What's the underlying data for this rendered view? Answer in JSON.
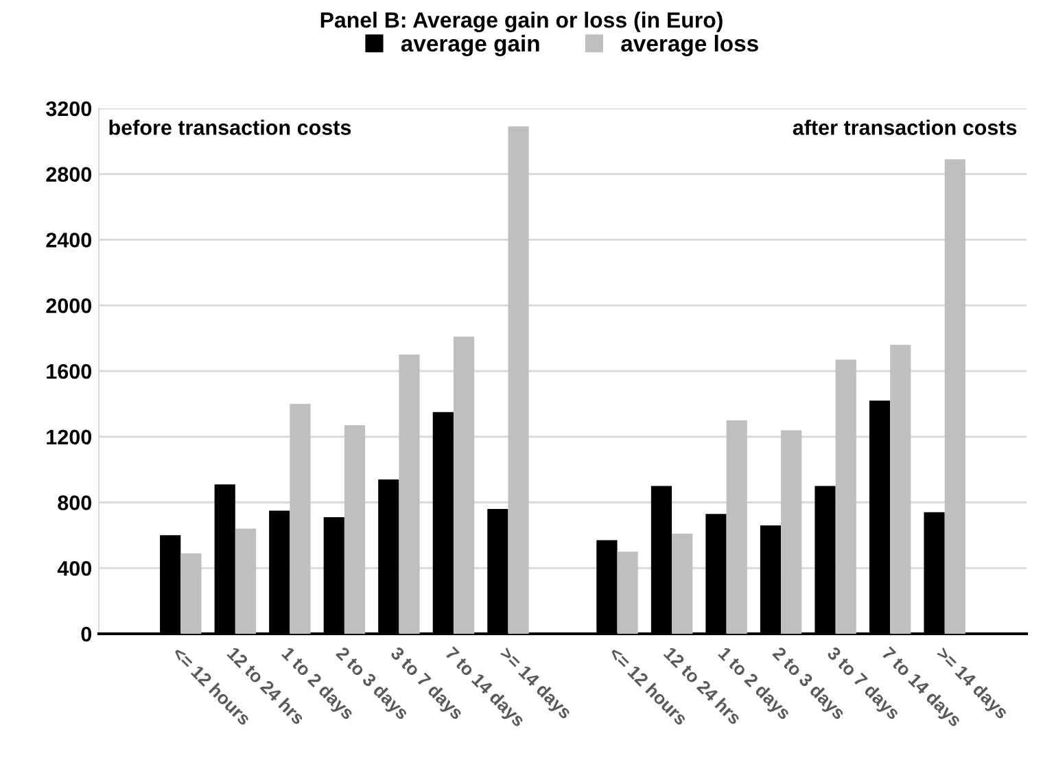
{
  "chart_data": {
    "type": "bar",
    "title": "Panel B: Average gain or loss (in Euro)",
    "categories": [
      null,
      "<= 12 hours",
      "12 to 24 hrs",
      "1 to 2 days",
      "2 to 3 days",
      "3 to 7 days",
      "7 to 14 days",
      ">= 14 days",
      null,
      "<= 12 hours",
      "12 to 24 hrs",
      "1 to 2 days",
      "2 to 3 days",
      "3 to 7 days",
      "7 to 14 days",
      ">= 14 days",
      null
    ],
    "series": [
      {
        "name": "average gain",
        "color": "#000000",
        "values": [
          null,
          600,
          910,
          750,
          710,
          940,
          1350,
          760,
          null,
          570,
          900,
          730,
          660,
          900,
          1420,
          740,
          null
        ]
      },
      {
        "name": "average loss",
        "color": "#bfbfbf",
        "values": [
          null,
          490,
          640,
          1400,
          1270,
          1700,
          1810,
          3090,
          null,
          500,
          610,
          1300,
          1240,
          1670,
          1760,
          2890,
          null
        ]
      }
    ],
    "ylim": [
      0,
      3200
    ],
    "yticks": [
      0,
      400,
      800,
      1200,
      1600,
      2000,
      2400,
      2800,
      3200
    ],
    "grid": "y",
    "legend": "top",
    "annotations": [
      "before transaction costs",
      "after transaction costs"
    ]
  }
}
